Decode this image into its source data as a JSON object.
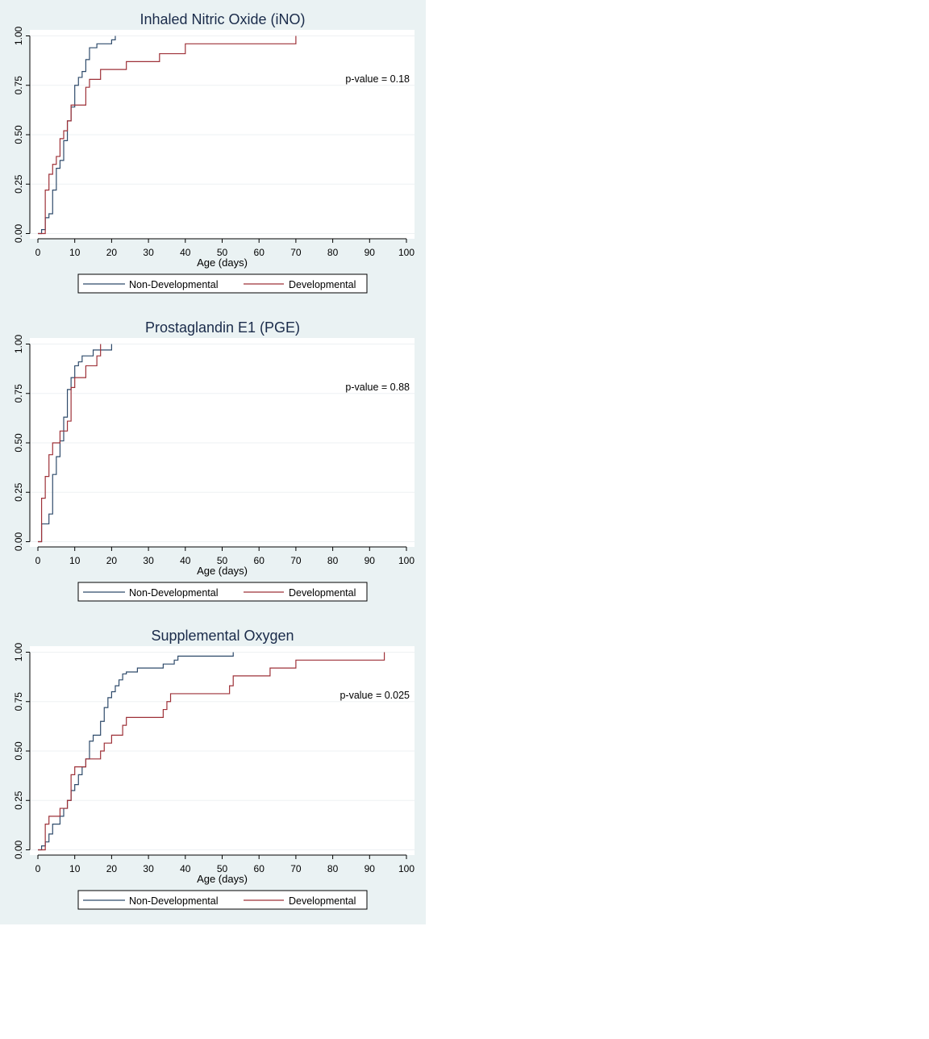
{
  "chart_data": [
    {
      "type": "line",
      "title": "Inhaled Nitric Oxide (iNO)",
      "xlabel": "Age (days)",
      "ylabel": "",
      "xlim": [
        0,
        100
      ],
      "ylim": [
        0,
        1
      ],
      "xticks": [
        "0",
        "10",
        "20",
        "30",
        "40",
        "50",
        "60",
        "70",
        "80",
        "90",
        "100"
      ],
      "yticks": [
        "0.00",
        "0.25",
        "0.50",
        "0.75",
        "1.00"
      ],
      "annotation": "p-value = 0.18",
      "grid": true,
      "legend_position": "bottom",
      "series": [
        {
          "name": "Non-Developmental",
          "color": "#2f4b6b",
          "step": true,
          "x": [
            0,
            1,
            2,
            3,
            4,
            5,
            6,
            7,
            8,
            9,
            10,
            11,
            12,
            13,
            14,
            16,
            20,
            21
          ],
          "y": [
            0,
            0.02,
            0.08,
            0.1,
            0.22,
            0.33,
            0.37,
            0.47,
            0.57,
            0.64,
            0.75,
            0.79,
            0.82,
            0.88,
            0.94,
            0.96,
            0.98,
            1.0
          ]
        },
        {
          "name": "Developmental",
          "color": "#9e3138",
          "step": true,
          "x": [
            0,
            2,
            3,
            4,
            5,
            6,
            7,
            8,
            9,
            10,
            13,
            14,
            17,
            24,
            33,
            40,
            70
          ],
          "y": [
            0,
            0.22,
            0.3,
            0.35,
            0.39,
            0.48,
            0.52,
            0.57,
            0.65,
            0.65,
            0.74,
            0.78,
            0.83,
            0.87,
            0.91,
            0.96,
            1.0
          ]
        }
      ]
    },
    {
      "type": "line",
      "title": "Prostaglandin E1 (PGE)",
      "xlabel": "Age (days)",
      "ylabel": "",
      "xlim": [
        0,
        100
      ],
      "ylim": [
        0,
        1
      ],
      "xticks": [
        "0",
        "10",
        "20",
        "30",
        "40",
        "50",
        "60",
        "70",
        "80",
        "90",
        "100"
      ],
      "yticks": [
        "0.00",
        "0.25",
        "0.50",
        "0.75",
        "1.00"
      ],
      "annotation": "p-value = 0.88",
      "grid": true,
      "legend_position": "bottom",
      "series": [
        {
          "name": "Non-Developmental",
          "color": "#2f4b6b",
          "step": true,
          "x": [
            0,
            1,
            3,
            4,
            5,
            6,
            7,
            8,
            9,
            10,
            11,
            12,
            15,
            18,
            20
          ],
          "y": [
            0,
            0.09,
            0.14,
            0.34,
            0.43,
            0.51,
            0.63,
            0.77,
            0.83,
            0.89,
            0.91,
            0.94,
            0.97,
            0.97,
            1.0
          ]
        },
        {
          "name": "Developmental",
          "color": "#9e3138",
          "step": true,
          "x": [
            0,
            1,
            2,
            3,
            4,
            6,
            7,
            8,
            9,
            10,
            13,
            16,
            17
          ],
          "y": [
            0,
            0.22,
            0.33,
            0.44,
            0.5,
            0.56,
            0.56,
            0.61,
            0.78,
            0.83,
            0.89,
            0.94,
            1.0
          ]
        }
      ]
    },
    {
      "type": "line",
      "title": "Supplemental Oxygen",
      "xlabel": "Age (days)",
      "ylabel": "",
      "xlim": [
        0,
        100
      ],
      "ylim": [
        0,
        1
      ],
      "xticks": [
        "0",
        "10",
        "20",
        "30",
        "40",
        "50",
        "60",
        "70",
        "80",
        "90",
        "100"
      ],
      "yticks": [
        "0.00",
        "0.25",
        "0.50",
        "0.75",
        "1.00"
      ],
      "annotation": "p-value = 0.025",
      "grid": true,
      "legend_position": "bottom",
      "series": [
        {
          "name": "Non-Developmental",
          "color": "#2f4b6b",
          "step": true,
          "x": [
            0,
            1,
            2,
            3,
            4,
            6,
            7,
            8,
            9,
            10,
            11,
            12,
            13,
            14,
            15,
            17,
            18,
            19,
            20,
            21,
            22,
            23,
            24,
            27,
            34,
            37,
            38,
            53
          ],
          "y": [
            0,
            0.02,
            0.04,
            0.08,
            0.13,
            0.17,
            0.21,
            0.25,
            0.3,
            0.33,
            0.38,
            0.42,
            0.46,
            0.55,
            0.58,
            0.65,
            0.72,
            0.77,
            0.8,
            0.83,
            0.86,
            0.89,
            0.9,
            0.92,
            0.94,
            0.96,
            0.98,
            1.0
          ]
        },
        {
          "name": "Developmental",
          "color": "#9e3138",
          "step": true,
          "x": [
            0,
            2,
            3,
            5,
            6,
            8,
            9,
            10,
            13,
            17,
            18,
            20,
            23,
            24,
            34,
            35,
            36,
            52,
            53,
            63,
            70,
            94
          ],
          "y": [
            0,
            0.13,
            0.17,
            0.17,
            0.21,
            0.25,
            0.38,
            0.42,
            0.46,
            0.5,
            0.54,
            0.58,
            0.63,
            0.67,
            0.71,
            0.75,
            0.79,
            0.83,
            0.88,
            0.92,
            0.96,
            1.0
          ]
        }
      ]
    }
  ]
}
